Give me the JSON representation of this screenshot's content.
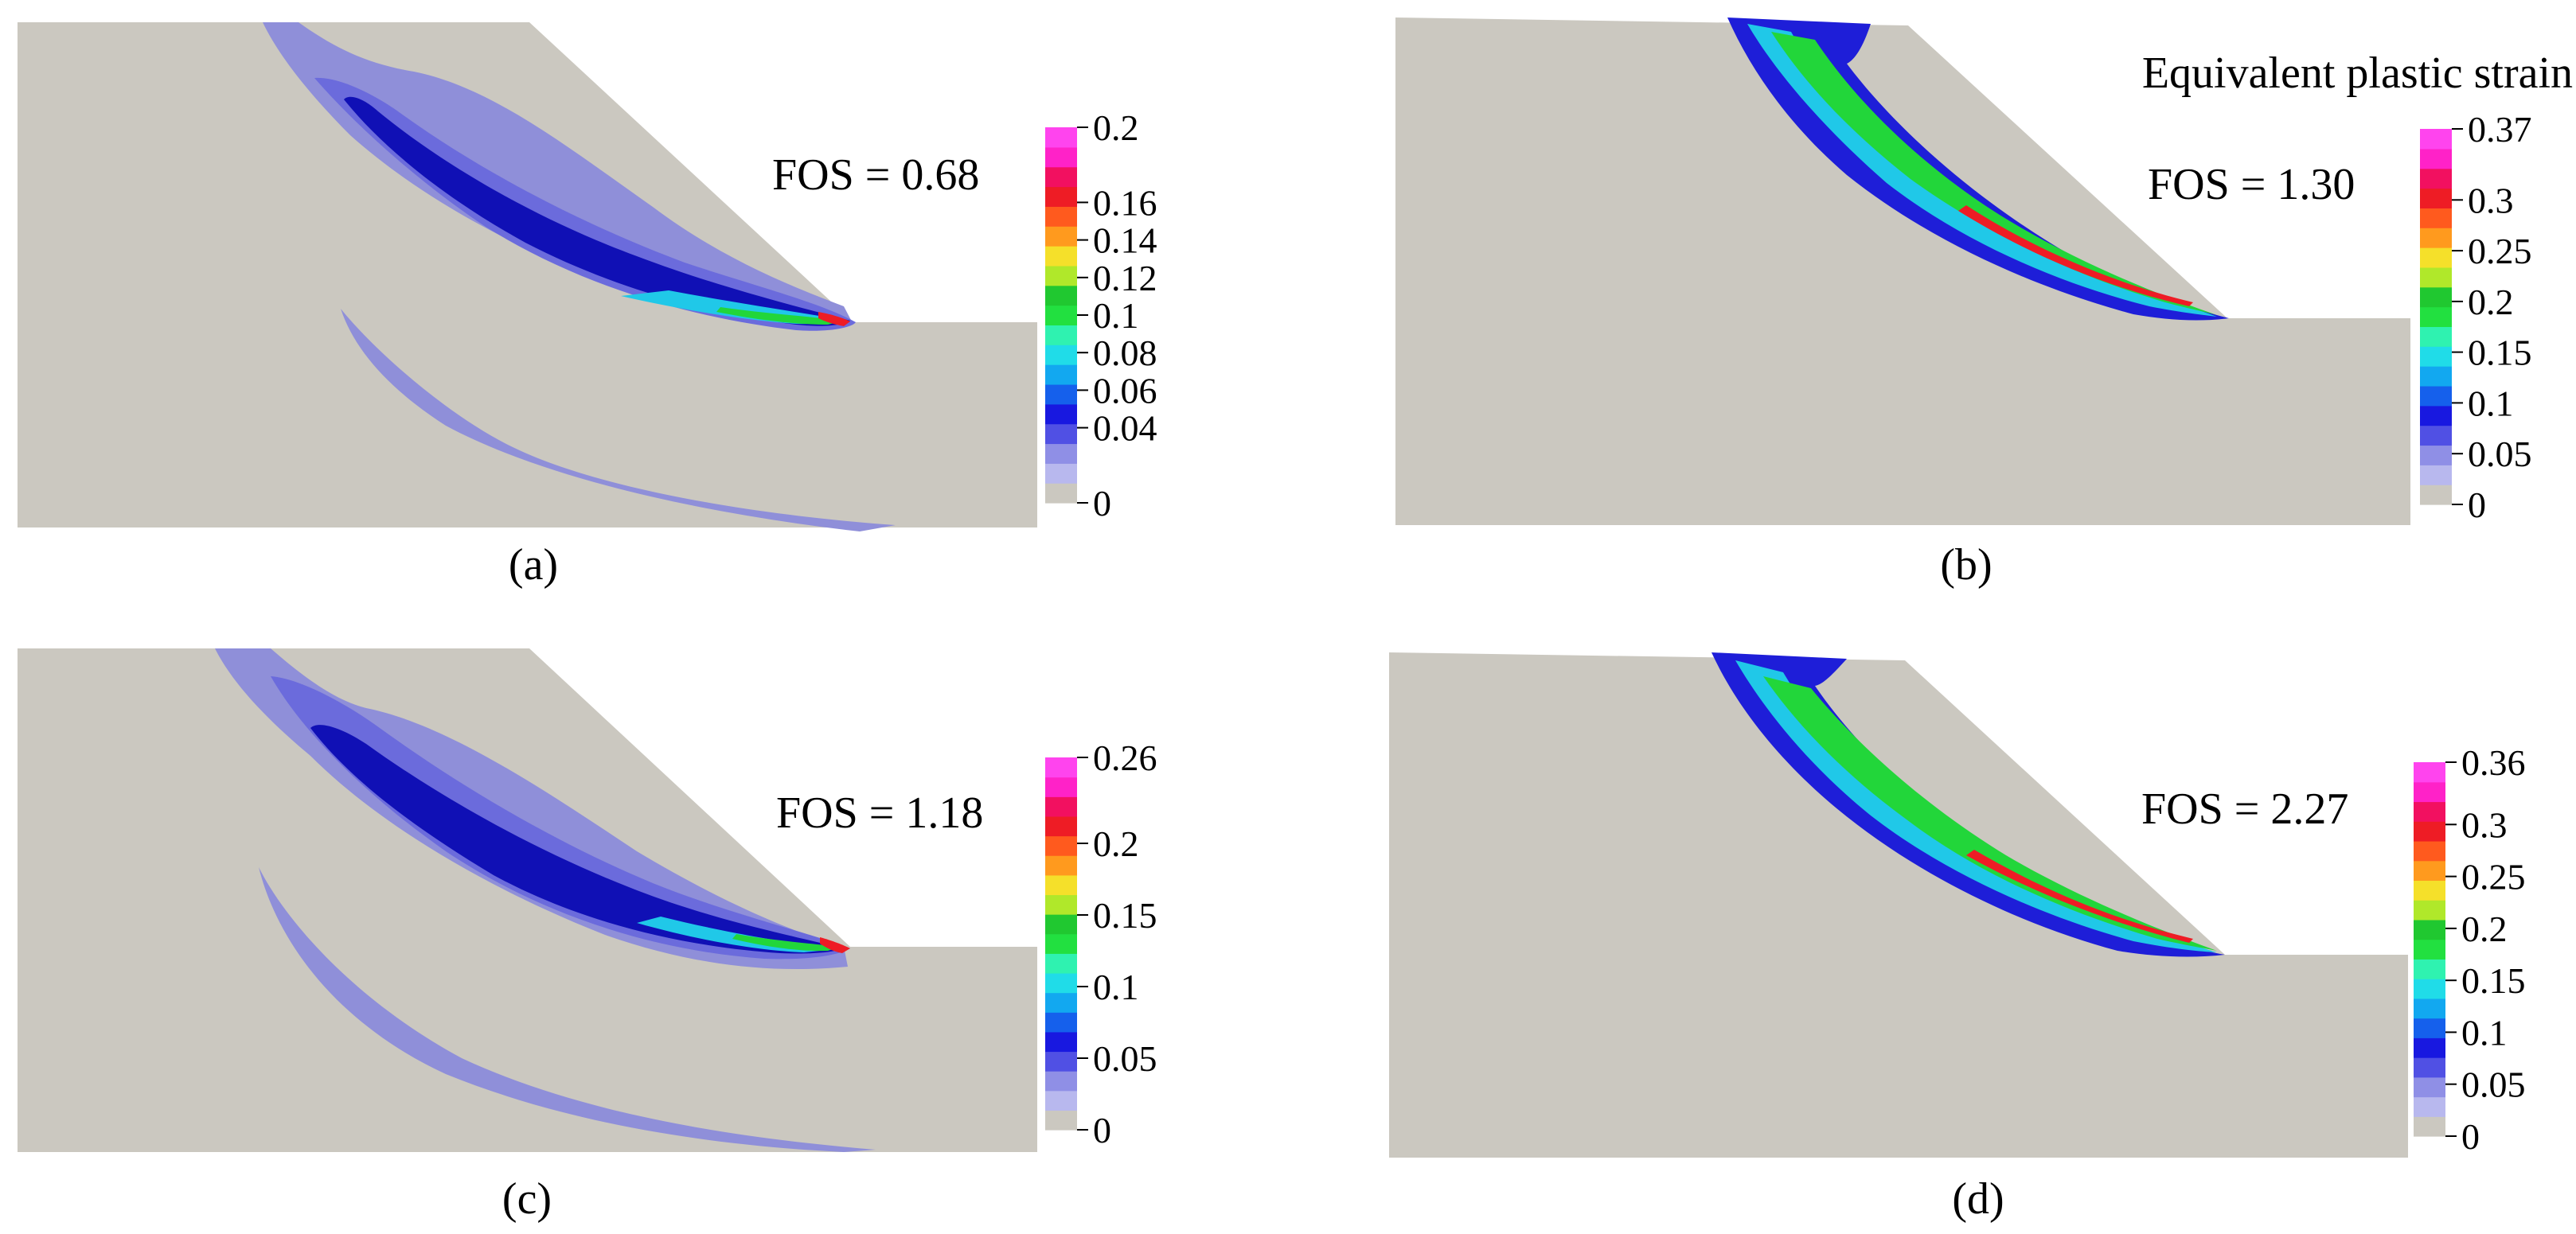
{
  "figure": {
    "legend_title": "Equivalent plastic strain",
    "colors": {
      "soil": "#cbc8c0",
      "lavender": "#8f8fd9",
      "periwinkle": "#6b6bdc",
      "blue": "#1e1ed8",
      "dark_blue": "#1010b5",
      "medium_blue": "#3a57e8",
      "cyan": "#20c8e8",
      "aqua": "#2fe0c0",
      "green": "#22d63a",
      "yellow_green": "#b8e82a",
      "yellow": "#f5e02a",
      "orange": "#ff7f1e",
      "red": "#ee1c25",
      "magenta": "#ff22d0"
    },
    "scale_colors": [
      "#cbc8c0",
      "#b8b8ee",
      "#8f8fe6",
      "#5050e4",
      "#1818e0",
      "#1560ec",
      "#12a8f0",
      "#20dce8",
      "#2ff2b0",
      "#22e040",
      "#20c830",
      "#b0e82a",
      "#f5e02a",
      "#ff9a1e",
      "#ff5a1e",
      "#ee1c25",
      "#f21060",
      "#ff22c8",
      "#ff44ee"
    ],
    "panels": [
      {
        "caption": "(a)",
        "fos": "FOS = 0.68",
        "colorbar_ticks": [
          {
            "value": 0.2,
            "label": "0.2"
          },
          {
            "value": 0.16,
            "label": "0.16"
          },
          {
            "value": 0.14,
            "label": "0.14"
          },
          {
            "value": 0.12,
            "label": "0.12"
          },
          {
            "value": 0.1,
            "label": "0.1"
          },
          {
            "value": 0.08,
            "label": "0.08"
          },
          {
            "value": 0.06,
            "label": "0.06"
          },
          {
            "value": 0.04,
            "label": "0.04"
          },
          {
            "value": 0,
            "label": "0"
          }
        ],
        "colorbar_max": 0.2
      },
      {
        "caption": "(b)",
        "fos": "FOS =  1.30",
        "colorbar_ticks": [
          {
            "value": 0.37,
            "label": "0.37"
          },
          {
            "value": 0.3,
            "label": "0.3"
          },
          {
            "value": 0.25,
            "label": "0.25"
          },
          {
            "value": 0.2,
            "label": "0.2"
          },
          {
            "value": 0.15,
            "label": "0.15"
          },
          {
            "value": 0.1,
            "label": "0.1"
          },
          {
            "value": 0.05,
            "label": "0.05"
          },
          {
            "value": 0,
            "label": "0"
          }
        ],
        "colorbar_max": 0.37
      },
      {
        "caption": "(c)",
        "fos": "FOS = 1.18",
        "colorbar_ticks": [
          {
            "value": 0.26,
            "label": "0.26"
          },
          {
            "value": 0.2,
            "label": "0.2"
          },
          {
            "value": 0.15,
            "label": "0.15"
          },
          {
            "value": 0.1,
            "label": "0.1"
          },
          {
            "value": 0.05,
            "label": "0.05"
          },
          {
            "value": 0,
            "label": "0"
          }
        ],
        "colorbar_max": 0.26
      },
      {
        "caption": "(d)",
        "fos": "FOS = 2.27",
        "colorbar_ticks": [
          {
            "value": 0.36,
            "label": "0.36"
          },
          {
            "value": 0.3,
            "label": "0.3"
          },
          {
            "value": 0.25,
            "label": "0.25"
          },
          {
            "value": 0.2,
            "label": "0.2"
          },
          {
            "value": 0.15,
            "label": "0.15"
          },
          {
            "value": 0.1,
            "label": "0.1"
          },
          {
            "value": 0.05,
            "label": "0.05"
          },
          {
            "value": 0,
            "label": "0"
          }
        ],
        "colorbar_max": 0.36
      }
    ]
  }
}
